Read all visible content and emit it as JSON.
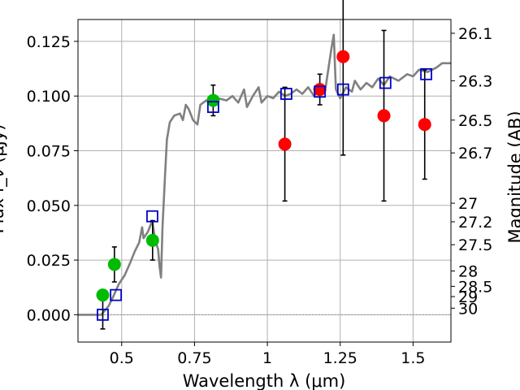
{
  "chart_data": {
    "type": "scatter",
    "title": "",
    "xlabel": "Wavelength  λ (μm)",
    "ylabel_left": "Flux f_ν (μJy)",
    "ylabel_right": "Magnitude (AB)",
    "xlim": [
      0.35,
      1.63
    ],
    "ylim": [
      -0.0125,
      0.135
    ],
    "grid": true,
    "x_ticks": [
      {
        "value": 0.5,
        "label": "0.5"
      },
      {
        "value": 0.75,
        "label": "0.75"
      },
      {
        "value": 1.0,
        "label": "1"
      },
      {
        "value": 1.25,
        "label": "1.25"
      },
      {
        "value": 1.5,
        "label": "1.5"
      }
    ],
    "y_ticks": [
      {
        "value": 0.0,
        "label": "0.000"
      },
      {
        "value": 0.025,
        "label": "0.025"
      },
      {
        "value": 0.05,
        "label": "0.050"
      },
      {
        "value": 0.075,
        "label": "0.075"
      },
      {
        "value": 0.1,
        "label": "0.100"
      },
      {
        "value": 0.125,
        "label": "0.125"
      }
    ],
    "right_ticks": [
      {
        "flux": 0.1287,
        "label": "26.1"
      },
      {
        "flux": 0.107,
        "label": "26.3"
      },
      {
        "flux": 0.089,
        "label": "26.5"
      },
      {
        "flux": 0.074,
        "label": "26.7"
      },
      {
        "flux": 0.051,
        "label": "27"
      },
      {
        "flux": 0.0425,
        "label": "27.2"
      },
      {
        "flux": 0.032,
        "label": "27.5"
      },
      {
        "flux": 0.02,
        "label": "28"
      },
      {
        "flux": 0.013,
        "label": "28.5"
      },
      {
        "flux": 0.0083,
        "label": "29"
      },
      {
        "flux": 0.003,
        "label": "30"
      }
    ],
    "series": [
      {
        "kind": "model-spectrum",
        "color": "#808080",
        "points": [
          [
            0.35,
            0.0
          ],
          [
            0.43,
            0.0
          ],
          [
            0.455,
            0.004
          ],
          [
            0.47,
            0.008
          ],
          [
            0.49,
            0.014
          ],
          [
            0.51,
            0.018
          ],
          [
            0.53,
            0.024
          ],
          [
            0.545,
            0.029
          ],
          [
            0.56,
            0.033
          ],
          [
            0.57,
            0.04
          ],
          [
            0.575,
            0.035
          ],
          [
            0.59,
            0.038
          ],
          [
            0.605,
            0.043
          ],
          [
            0.615,
            0.034
          ],
          [
            0.625,
            0.03
          ],
          [
            0.63,
            0.022
          ],
          [
            0.635,
            0.017
          ],
          [
            0.64,
            0.04
          ],
          [
            0.648,
            0.062
          ],
          [
            0.655,
            0.08
          ],
          [
            0.665,
            0.088
          ],
          [
            0.68,
            0.091
          ],
          [
            0.7,
            0.092
          ],
          [
            0.71,
            0.089
          ],
          [
            0.72,
            0.096
          ],
          [
            0.73,
            0.094
          ],
          [
            0.745,
            0.089
          ],
          [
            0.76,
            0.087
          ],
          [
            0.77,
            0.096
          ],
          [
            0.79,
            0.098
          ],
          [
            0.81,
            0.096
          ],
          [
            0.83,
            0.099
          ],
          [
            0.86,
            0.098
          ],
          [
            0.88,
            0.1
          ],
          [
            0.9,
            0.097
          ],
          [
            0.92,
            0.103
          ],
          [
            0.93,
            0.095
          ],
          [
            0.95,
            0.1
          ],
          [
            0.97,
            0.104
          ],
          [
            0.98,
            0.097
          ],
          [
            1.0,
            0.1
          ],
          [
            1.02,
            0.099
          ],
          [
            1.04,
            0.102
          ],
          [
            1.06,
            0.1
          ],
          [
            1.08,
            0.101
          ],
          [
            1.1,
            0.103
          ],
          [
            1.12,
            0.101
          ],
          [
            1.14,
            0.104
          ],
          [
            1.16,
            0.1
          ],
          [
            1.18,
            0.103
          ],
          [
            1.2,
            0.104
          ],
          [
            1.21,
            0.113
          ],
          [
            1.22,
            0.122
          ],
          [
            1.228,
            0.128
          ],
          [
            1.235,
            0.103
          ],
          [
            1.25,
            0.099
          ],
          [
            1.27,
            0.104
          ],
          [
            1.29,
            0.102
          ],
          [
            1.3,
            0.107
          ],
          [
            1.32,
            0.103
          ],
          [
            1.34,
            0.106
          ],
          [
            1.36,
            0.104
          ],
          [
            1.38,
            0.108
          ],
          [
            1.4,
            0.105
          ],
          [
            1.42,
            0.109
          ],
          [
            1.45,
            0.107
          ],
          [
            1.48,
            0.11
          ],
          [
            1.5,
            0.109
          ],
          [
            1.52,
            0.112
          ],
          [
            1.55,
            0.111
          ],
          [
            1.58,
            0.113
          ],
          [
            1.6,
            0.115
          ],
          [
            1.63,
            0.115
          ]
        ]
      },
      {
        "kind": "photometry-green",
        "color": "#00bb00",
        "points": [
          {
            "x": 0.435,
            "y": 0.009
          },
          {
            "x": 0.475,
            "y": 0.023,
            "err": 0.008
          },
          {
            "x": 0.606,
            "y": 0.034,
            "err": 0.009
          },
          {
            "x": 0.814,
            "y": 0.098,
            "err": 0.007
          }
        ]
      },
      {
        "kind": "photometry-red",
        "color": "#ff0000",
        "points": [
          {
            "x": 1.06,
            "y": 0.078,
            "err": 0.026
          },
          {
            "x": 1.18,
            "y": 0.103,
            "err": 0.007
          },
          {
            "x": 1.26,
            "y": 0.118,
            "err": 0.045
          },
          {
            "x": 1.4,
            "y": 0.091,
            "err": 0.039
          },
          {
            "x": 1.54,
            "y": 0.087,
            "err": 0.025
          }
        ]
      },
      {
        "kind": "model-photometry-boxes",
        "color": "#0000cc",
        "points": [
          {
            "x": 0.435,
            "y": 0.0,
            "err": 0.0065
          },
          {
            "x": 0.48,
            "y": 0.009
          },
          {
            "x": 0.605,
            "y": 0.045
          },
          {
            "x": 0.814,
            "y": 0.095
          },
          {
            "x": 1.065,
            "y": 0.101
          },
          {
            "x": 1.18,
            "y": 0.102
          },
          {
            "x": 1.26,
            "y": 0.103
          },
          {
            "x": 1.405,
            "y": 0.106
          },
          {
            "x": 1.545,
            "y": 0.11
          }
        ]
      }
    ]
  }
}
